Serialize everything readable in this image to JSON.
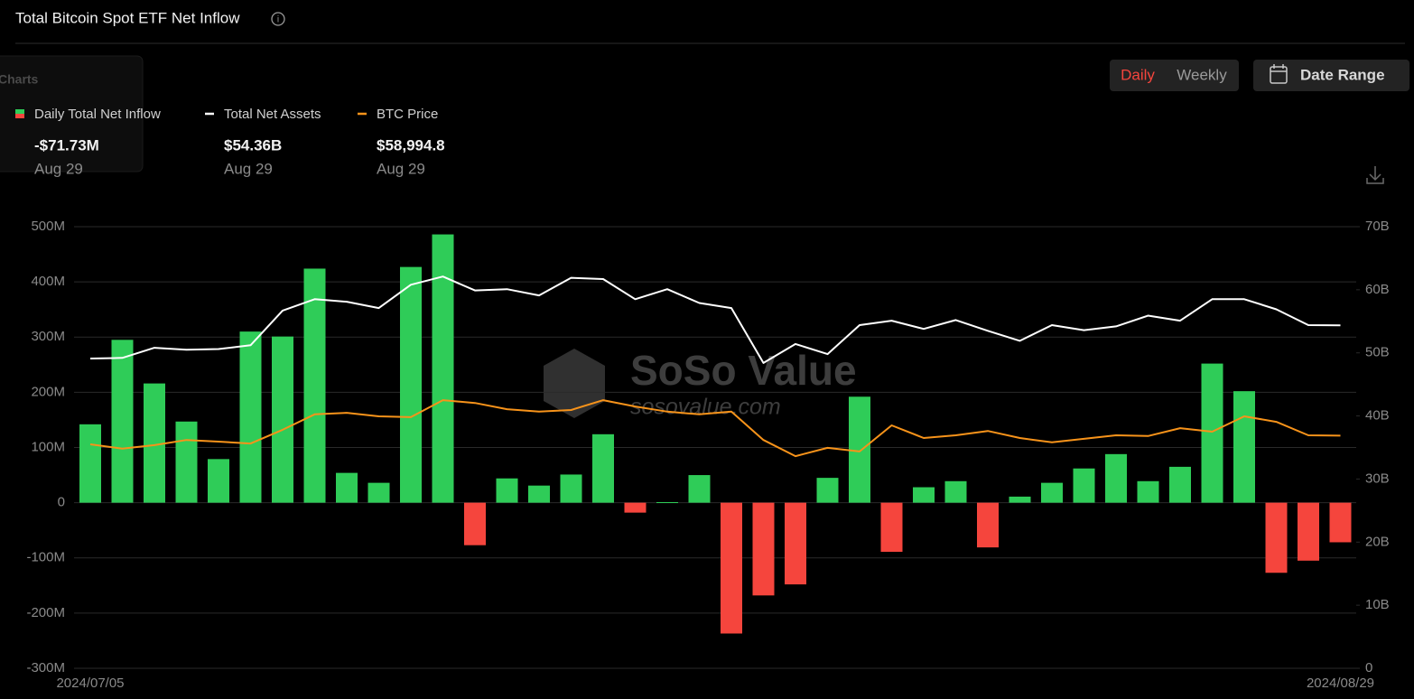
{
  "header": {
    "title": "Total Bitcoin Spot ETF Net Inflow",
    "menu_overlay": [
      "Charts"
    ],
    "buttons": [
      "Daily",
      "Weekly",
      "Date Range"
    ],
    "watermark": [
      "SoSo Value",
      "sosovalue.com"
    ]
  },
  "chart_data": {
    "type": "bar",
    "categories": [
      "2024/07/05",
      null,
      null,
      null,
      null,
      null,
      null,
      null,
      null,
      null,
      null,
      null,
      null,
      null,
      null,
      null,
      null,
      null,
      null,
      null,
      null,
      null,
      null,
      null,
      null,
      null,
      null,
      null,
      null,
      null,
      null,
      null,
      null,
      null,
      null,
      null,
      null,
      null,
      null,
      "2024/08/29"
    ],
    "ylim": [
      -300,
      500
    ],
    "yticks": [
      {
        "value": -300,
        "label": "-300M"
      },
      {
        "value": -200,
        "label": "-200M"
      },
      {
        "value": -100,
        "label": "-100M"
      },
      0,
      {
        "value": 100,
        "label": "100M"
      },
      {
        "value": 200,
        "label": "200M"
      },
      {
        "value": 300,
        "label": "300M"
      },
      {
        "value": 400,
        "label": "400M"
      },
      {
        "value": 500,
        "label": "500M"
      }
    ],
    "y2lim": [
      0,
      70
    ],
    "y2ticks": [
      0,
      {
        "value": 10,
        "label": "10B"
      },
      {
        "value": 20,
        "label": "20B"
      },
      {
        "value": 30,
        "label": "30B"
      },
      {
        "value": 40,
        "label": "40B"
      },
      {
        "value": 50,
        "label": "50B"
      },
      {
        "value": 60,
        "label": "60B"
      },
      {
        "value": 70,
        "label": "70B"
      }
    ],
    "y3lim": [
      0,
      112000
    ],
    "grid": true,
    "series": [
      {
        "name": "Daily Total Net Inflow",
        "type": "bar",
        "axis": "y",
        "color": "#2fcc58",
        "negative_color": "#f5453d",
        "latest_label": "-$71.73M",
        "latest_date": "Aug 29",
        "values": [
          142,
          295,
          216,
          147,
          79,
          310,
          301,
          424,
          54,
          36,
          427,
          486,
          -77,
          44,
          31,
          51,
          124,
          -18,
          1,
          50,
          -237,
          -168,
          -148,
          45,
          192,
          -89,
          28,
          39,
          -81,
          11,
          36,
          62,
          88,
          39,
          65,
          252,
          202,
          -127,
          -105,
          -71.73
        ]
      },
      {
        "name": "Total Net Assets",
        "type": "line",
        "axis": "y2",
        "color": "#ffffff",
        "latest_label": "$54.36B",
        "latest_date": "Aug 29",
        "values": [
          49.1,
          49.2,
          50.8,
          50.5,
          50.6,
          51.2,
          56.7,
          58.5,
          58.1,
          57.1,
          60.8,
          62.1,
          59.9,
          60.1,
          59.1,
          61.9,
          61.7,
          58.5,
          60.1,
          57.9,
          57.1,
          48.4,
          51.4,
          49.8,
          54.4,
          55.1,
          53.8,
          55.2,
          53.5,
          51.9,
          54.4,
          53.6,
          54.2,
          55.9,
          55.1,
          58.5,
          58.5,
          56.9,
          54.4,
          54.36
        ]
      },
      {
        "name": "BTC Price",
        "type": "line",
        "axis": "y3",
        "color": "#f7931a",
        "latest_label": "$58,994.8",
        "latest_date": "Aug 29",
        "values": [
          56800,
          55700,
          56600,
          57900,
          57500,
          57000,
          60500,
          64400,
          64800,
          63900,
          63700,
          68000,
          67300,
          65700,
          65100,
          65500,
          68000,
          66400,
          65100,
          64400,
          65100,
          57900,
          53800,
          55900,
          55000,
          61600,
          58400,
          59100,
          60200,
          58400,
          57300,
          58200,
          59100,
          58900,
          60900,
          60000,
          63900,
          62500,
          59100,
          58994.8
        ]
      }
    ]
  }
}
